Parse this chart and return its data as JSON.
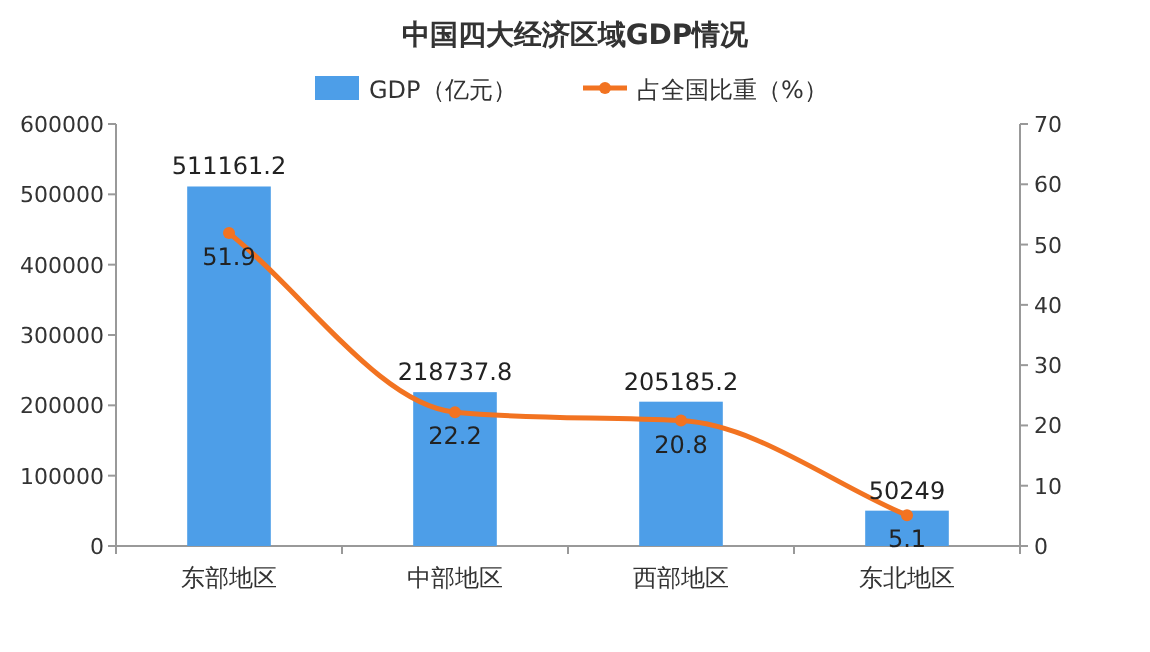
{
  "chart_data": {
    "type": "bar",
    "title": "中国四大经济区域GDP情况",
    "categories": [
      "东部地区",
      "中部地区",
      "西部地区",
      "东北地区"
    ],
    "series": [
      {
        "name": "GDP（亿元）",
        "color": "#4d9ee8",
        "values": [
          511161.2,
          218737.8,
          205185.2,
          50249
        ]
      },
      {
        "name": "占全国比重（%）",
        "type": "line",
        "axis": "y2",
        "color": "#f27321",
        "values": [
          51.9,
          22.2,
          20.8,
          5.1
        ]
      }
    ],
    "ylim": [
      0,
      600000
    ],
    "yticks": [
      0,
      100000,
      200000,
      300000,
      400000,
      500000,
      600000
    ],
    "y2lim": [
      0,
      70
    ],
    "y2ticks": [
      0,
      10,
      20,
      30,
      40,
      50,
      60,
      70
    ],
    "data_labels": true,
    "legend": "top",
    "grid": false,
    "marker": "circle",
    "line_style": "solid"
  }
}
